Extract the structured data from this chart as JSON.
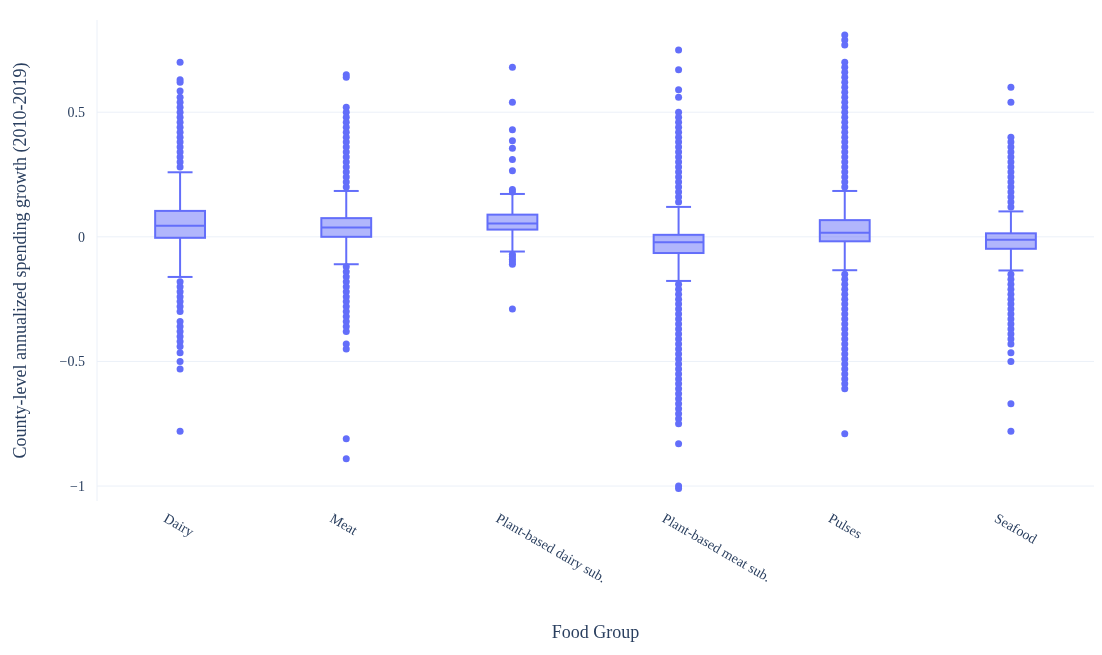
{
  "chart_data": {
    "type": "box",
    "xlabel": "Food Group",
    "ylabel": "County-level annualized spending growth (2010-2019)",
    "categories": [
      "Dairy",
      "Meat",
      "Plant-based dairy sub.",
      "Plant-based meat sub.",
      "Pulses",
      "Seafood"
    ],
    "color": "#636efa",
    "boxes": [
      {
        "low": -0.161,
        "q1": -0.004,
        "median": 0.044,
        "q3": 0.104,
        "high": 0.259,
        "outliers": [
          0.7,
          0.63,
          0.62,
          0.585,
          0.56,
          0.54,
          0.52,
          0.5,
          0.48,
          0.46,
          0.44,
          0.42,
          0.4,
          0.38,
          0.36,
          0.34,
          0.32,
          0.3,
          0.28,
          -0.18,
          -0.2,
          -0.22,
          -0.24,
          -0.26,
          -0.28,
          -0.3,
          -0.34,
          -0.36,
          -0.38,
          -0.4,
          -0.42,
          -0.44,
          -0.465,
          -0.5,
          -0.53,
          -0.78
        ]
      },
      {
        "low": -0.11,
        "q1": 0.0,
        "median": 0.037,
        "q3": 0.075,
        "high": 0.184,
        "outliers": [
          0.65,
          0.64,
          0.52,
          0.5,
          0.48,
          0.46,
          0.44,
          0.42,
          0.4,
          0.38,
          0.36,
          0.34,
          0.32,
          0.3,
          0.28,
          0.26,
          0.24,
          0.22,
          0.2,
          -0.12,
          -0.14,
          -0.16,
          -0.18,
          -0.2,
          -0.22,
          -0.24,
          -0.26,
          -0.28,
          -0.3,
          -0.32,
          -0.34,
          -0.36,
          -0.38,
          -0.43,
          -0.45,
          -0.81,
          -0.89
        ]
      },
      {
        "low": -0.059,
        "q1": 0.029,
        "median": 0.053,
        "q3": 0.089,
        "high": 0.172,
        "outliers": [
          0.68,
          0.54,
          0.43,
          0.385,
          0.355,
          0.31,
          0.265,
          0.19,
          0.18,
          -0.07,
          -0.08,
          -0.09,
          -0.1,
          -0.11,
          -0.29
        ]
      },
      {
        "low": -0.177,
        "q1": -0.065,
        "median": -0.022,
        "q3": 0.008,
        "high": 0.12,
        "outliers": [
          0.75,
          0.67,
          0.59,
          0.56,
          0.5,
          0.48,
          0.46,
          0.44,
          0.42,
          0.4,
          0.38,
          0.36,
          0.34,
          0.32,
          0.3,
          0.28,
          0.26,
          0.24,
          0.22,
          0.2,
          0.18,
          0.16,
          0.14,
          -0.19,
          -0.21,
          -0.23,
          -0.25,
          -0.27,
          -0.29,
          -0.31,
          -0.33,
          -0.35,
          -0.37,
          -0.39,
          -0.41,
          -0.43,
          -0.45,
          -0.47,
          -0.49,
          -0.51,
          -0.53,
          -0.55,
          -0.57,
          -0.59,
          -0.61,
          -0.63,
          -0.65,
          -0.67,
          -0.69,
          -0.71,
          -0.73,
          -0.75,
          -0.83,
          -1.0,
          -1.01
        ]
      },
      {
        "low": -0.134,
        "q1": -0.018,
        "median": 0.016,
        "q3": 0.067,
        "high": 0.184,
        "outliers": [
          0.81,
          0.79,
          0.77,
          0.7,
          0.68,
          0.66,
          0.64,
          0.62,
          0.6,
          0.58,
          0.56,
          0.54,
          0.52,
          0.5,
          0.48,
          0.46,
          0.44,
          0.42,
          0.4,
          0.38,
          0.36,
          0.34,
          0.32,
          0.3,
          0.28,
          0.26,
          0.24,
          0.22,
          0.2,
          -0.15,
          -0.17,
          -0.19,
          -0.21,
          -0.23,
          -0.25,
          -0.27,
          -0.29,
          -0.31,
          -0.33,
          -0.35,
          -0.37,
          -0.39,
          -0.41,
          -0.43,
          -0.45,
          -0.47,
          -0.49,
          -0.51,
          -0.53,
          -0.55,
          -0.57,
          -0.59,
          -0.61,
          -0.79
        ]
      },
      {
        "low": -0.135,
        "q1": -0.048,
        "median": -0.012,
        "q3": 0.014,
        "high": 0.102,
        "outliers": [
          0.6,
          0.54,
          0.4,
          0.38,
          0.36,
          0.34,
          0.32,
          0.3,
          0.28,
          0.26,
          0.24,
          0.22,
          0.2,
          0.18,
          0.16,
          0.14,
          0.12,
          -0.15,
          -0.17,
          -0.19,
          -0.21,
          -0.23,
          -0.25,
          -0.27,
          -0.29,
          -0.31,
          -0.33,
          -0.35,
          -0.37,
          -0.39,
          -0.41,
          -0.43,
          -0.465,
          -0.5,
          -0.67,
          -0.78
        ]
      }
    ],
    "ylim": [
      -1.06,
      0.87
    ],
    "yticks": [
      {
        "value": -1,
        "label": "−1"
      },
      {
        "value": -0.5,
        "label": "−0.5"
      },
      0,
      0.5
    ],
    "grid": "y"
  }
}
